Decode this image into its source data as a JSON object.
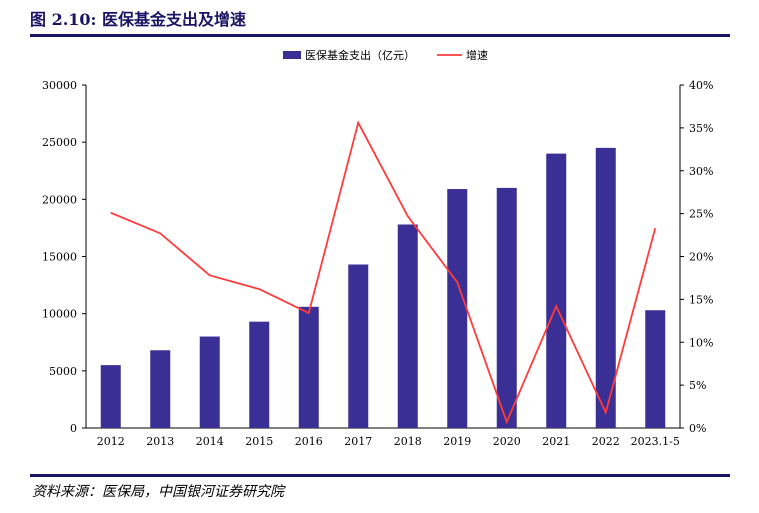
{
  "figure": {
    "title": "图 2.10:   医保基金支出及增速",
    "source": "资料来源：医保局，中国银河证券研究院"
  },
  "colors": {
    "bar": "#3a2f95",
    "line": "#ff3b3b",
    "rule": "#1b1464"
  },
  "chart_data": {
    "type": "bar",
    "categories": [
      "2012",
      "2013",
      "2014",
      "2015",
      "2016",
      "2017",
      "2018",
      "2019",
      "2020",
      "2021",
      "2022",
      "2023.1-5"
    ],
    "series": [
      {
        "name": "医保基金支出（亿元）",
        "type": "bar",
        "axis": "left",
        "values": [
          5500,
          6800,
          8000,
          9300,
          10600,
          14300,
          17800,
          20900,
          21000,
          24000,
          24500,
          10300
        ]
      },
      {
        "name": "增速",
        "type": "line",
        "axis": "right",
        "values": [
          25.1,
          22.7,
          17.8,
          16.2,
          13.4,
          35.6,
          24.7,
          17.0,
          0.7,
          14.2,
          1.8,
          23.3
        ]
      }
    ],
    "ylim_left": [
      0,
      30000
    ],
    "yticks_left": [
      "0",
      "5000",
      "10000",
      "15000",
      "20000",
      "25000",
      "30000"
    ],
    "ylim_right": [
      0,
      40
    ],
    "yticks_right": [
      "0%",
      "5%",
      "10%",
      "15%",
      "20%",
      "25%",
      "30%",
      "35%",
      "40%"
    ],
    "legend_position": "top-center",
    "grid": false
  }
}
